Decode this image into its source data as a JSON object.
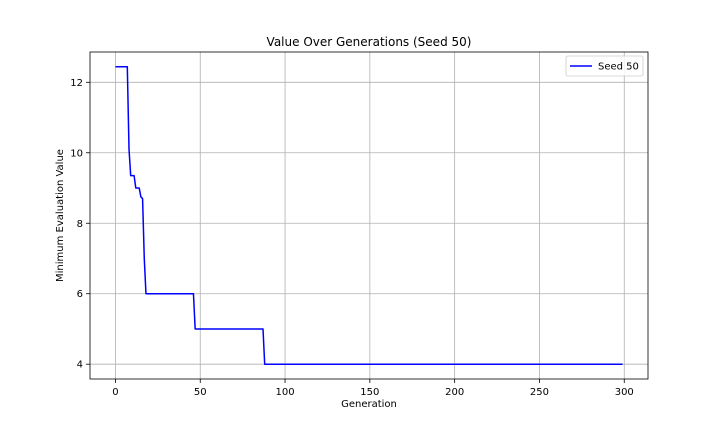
{
  "chart_data": {
    "type": "line",
    "title": "Value Over Generations (Seed 50)",
    "xlabel": "Generation",
    "ylabel": "Minimum Evaluation Value",
    "xlim": [
      -15,
      314
    ],
    "ylim": [
      3.58,
      12.86
    ],
    "xticks": [
      0,
      50,
      100,
      150,
      200,
      250,
      300
    ],
    "yticks": [
      4,
      6,
      8,
      10,
      12
    ],
    "grid": true,
    "legend_position": "top-right",
    "series": [
      {
        "name": "Seed 50",
        "color": "#0000ff",
        "x": [
          0,
          7,
          8,
          9,
          10,
          11,
          12,
          13,
          14,
          15,
          16,
          17,
          18,
          46,
          47,
          87,
          88,
          299
        ],
        "y": [
          12.44,
          12.44,
          10.1,
          9.35,
          9.35,
          9.35,
          9.0,
          9.0,
          9.0,
          8.75,
          8.7,
          7.0,
          6.0,
          6.0,
          5.0,
          5.0,
          4.0,
          4.0
        ]
      }
    ]
  }
}
